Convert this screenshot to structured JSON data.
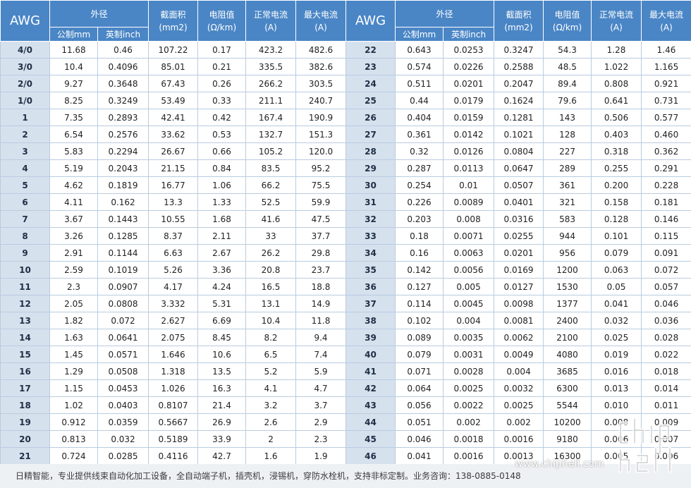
{
  "header": {
    "awg": "AWG",
    "outer_diameter": "外径",
    "metric": "公制mm",
    "imperial": "英制inch",
    "area": "截面积\n(mm2)",
    "resistance": "电阻值\n(Ω/km)",
    "normal_current": "正常电流\n(A)",
    "max_current": "最大电流\n(A)"
  },
  "rows": [
    {
      "left": [
        "4/0",
        "11.68",
        "0.46",
        "107.22",
        "0.17",
        "423.2",
        "482.6"
      ],
      "right": [
        "22",
        "0.643",
        "0.0253",
        "0.3247",
        "54.3",
        "1.28",
        "1.46"
      ]
    },
    {
      "left": [
        "3/0",
        "10.4",
        "0.4096",
        "85.01",
        "0.21",
        "335.5",
        "382.6"
      ],
      "right": [
        "23",
        "0.574",
        "0.0226",
        "0.2588",
        "48.5",
        "1.022",
        "1.165"
      ]
    },
    {
      "left": [
        "2/0",
        "9.27",
        "0.3648",
        "67.43",
        "0.26",
        "266.2",
        "303.5"
      ],
      "right": [
        "24",
        "0.511",
        "0.0201",
        "0.2047",
        "89.4",
        "0.808",
        "0.921"
      ]
    },
    {
      "left": [
        "1/0",
        "8.25",
        "0.3249",
        "53.49",
        "0.33",
        "211.1",
        "240.7"
      ],
      "right": [
        "25",
        "0.44",
        "0.0179",
        "0.1624",
        "79.6",
        "0.641",
        "0.731"
      ]
    },
    {
      "left": [
        "1",
        "7.35",
        "0.2893",
        "42.41",
        "0.42",
        "167.4",
        "190.9"
      ],
      "right": [
        "26",
        "0.404",
        "0.0159",
        "0.1281",
        "143",
        "0.506",
        "0.577"
      ]
    },
    {
      "left": [
        "2",
        "6.54",
        "0.2576",
        "33.62",
        "0.53",
        "132.7",
        "151.3"
      ],
      "right": [
        "27",
        "0.361",
        "0.0142",
        "0.1021",
        "128",
        "0.403",
        "0.460"
      ]
    },
    {
      "left": [
        "3",
        "5.83",
        "0.2294",
        "26.67",
        "0.66",
        "105.2",
        "120.0"
      ],
      "right": [
        "28",
        "0.32",
        "0.0126",
        "0.0804",
        "227",
        "0.318",
        "0.362"
      ]
    },
    {
      "left": [
        "4",
        "5.19",
        "0.2043",
        "21.15",
        "0.84",
        "83.5",
        "95.2"
      ],
      "right": [
        "29",
        "0.287",
        "0.0113",
        "0.0647",
        "289",
        "0.255",
        "0.291"
      ]
    },
    {
      "left": [
        "5",
        "4.62",
        "0.1819",
        "16.77",
        "1.06",
        "66.2",
        "75.5"
      ],
      "right": [
        "30",
        "0.254",
        "0.01",
        "0.0507",
        "361",
        "0.200",
        "0.228"
      ]
    },
    {
      "left": [
        "6",
        "4.11",
        "0.162",
        "13.3",
        "1.33",
        "52.5",
        "59.9"
      ],
      "right": [
        "31",
        "0.226",
        "0.0089",
        "0.0401",
        "321",
        "0.158",
        "0.181"
      ]
    },
    {
      "left": [
        "7",
        "3.67",
        "0.1443",
        "10.55",
        "1.68",
        "41.6",
        "47.5"
      ],
      "right": [
        "32",
        "0.203",
        "0.008",
        "0.0316",
        "583",
        "0.128",
        "0.146"
      ]
    },
    {
      "left": [
        "8",
        "3.26",
        "0.1285",
        "8.37",
        "2.11",
        "33",
        "37.7"
      ],
      "right": [
        "33",
        "0.18",
        "0.0071",
        "0.0255",
        "944",
        "0.101",
        "0.115"
      ]
    },
    {
      "left": [
        "9",
        "2.91",
        "0.1144",
        "6.63",
        "2.67",
        "26.2",
        "29.8"
      ],
      "right": [
        "34",
        "0.16",
        "0.0063",
        "0.0201",
        "956",
        "0.079",
        "0.091"
      ]
    },
    {
      "left": [
        "10",
        "2.59",
        "0.1019",
        "5.26",
        "3.36",
        "20.8",
        "23.7"
      ],
      "right": [
        "35",
        "0.142",
        "0.0056",
        "0.0169",
        "1200",
        "0.063",
        "0.072"
      ]
    },
    {
      "left": [
        "11",
        "2.3",
        "0.0907",
        "4.17",
        "4.24",
        "16.5",
        "18.8"
      ],
      "right": [
        "36",
        "0.127",
        "0.005",
        "0.0127",
        "1530",
        "0.05",
        "0.057"
      ]
    },
    {
      "left": [
        "12",
        "2.05",
        "0.0808",
        "3.332",
        "5.31",
        "13.1",
        "14.9"
      ],
      "right": [
        "37",
        "0.114",
        "0.0045",
        "0.0098",
        "1377",
        "0.041",
        "0.046"
      ]
    },
    {
      "left": [
        "13",
        "1.82",
        "0.072",
        "2.627",
        "6.69",
        "10.4",
        "11.8"
      ],
      "right": [
        "38",
        "0.102",
        "0.004",
        "0.0081",
        "2400",
        "0.032",
        "0.036"
      ]
    },
    {
      "left": [
        "14",
        "1.63",
        "0.0641",
        "2.075",
        "8.45",
        "8.2",
        "9.4"
      ],
      "right": [
        "39",
        "0.089",
        "0.0035",
        "0.0062",
        "2100",
        "0.025",
        "0.028"
      ]
    },
    {
      "left": [
        "15",
        "1.45",
        "0.0571",
        "1.646",
        "10.6",
        "6.5",
        "7.4"
      ],
      "right": [
        "40",
        "0.079",
        "0.0031",
        "0.0049",
        "4080",
        "0.019",
        "0.022"
      ]
    },
    {
      "left": [
        "16",
        "1.29",
        "0.0508",
        "1.318",
        "13.5",
        "5.2",
        "5.9"
      ],
      "right": [
        "41",
        "0.071",
        "0.0028",
        "0.004",
        "3685",
        "0.016",
        "0.018"
      ]
    },
    {
      "left": [
        "17",
        "1.15",
        "0.0453",
        "1.026",
        "16.3",
        "4.1",
        "4.7"
      ],
      "right": [
        "42",
        "0.064",
        "0.0025",
        "0.0032",
        "6300",
        "0.013",
        "0.014"
      ]
    },
    {
      "left": [
        "18",
        "1.02",
        "0.0403",
        "0.8107",
        "21.4",
        "3.2",
        "3.7"
      ],
      "right": [
        "43",
        "0.056",
        "0.0022",
        "0.0025",
        "5544",
        "0.010",
        "0.011"
      ]
    },
    {
      "left": [
        "19",
        "0.912",
        "0.0359",
        "0.5667",
        "26.9",
        "2.6",
        "2.9"
      ],
      "right": [
        "44",
        "0.051",
        "0.002",
        "0.002",
        "10200",
        "0.008",
        "0.009"
      ]
    },
    {
      "left": [
        "20",
        "0.813",
        "0.032",
        "0.5189",
        "33.9",
        "2",
        "2.3"
      ],
      "right": [
        "45",
        "0.046",
        "0.0018",
        "0.0016",
        "9180",
        "0.006",
        "0.007"
      ]
    },
    {
      "left": [
        "21",
        "0.724",
        "0.0285",
        "0.4116",
        "42.7",
        "1.6",
        "1.9"
      ],
      "right": [
        "46",
        "0.041",
        "0.0016",
        "0.0013",
        "16300",
        "0.005",
        "0.006"
      ]
    }
  ],
  "footer": {
    "text": "日精智能，专业提供线束自动化加工设备，全自动端子机，插壳机，浸锡机，穿防水栓机，支持非标定制。业务咨询：138-0885-0148"
  },
  "watermark": {
    "url": "www.chiphell.com",
    "logo": "chip hell"
  }
}
